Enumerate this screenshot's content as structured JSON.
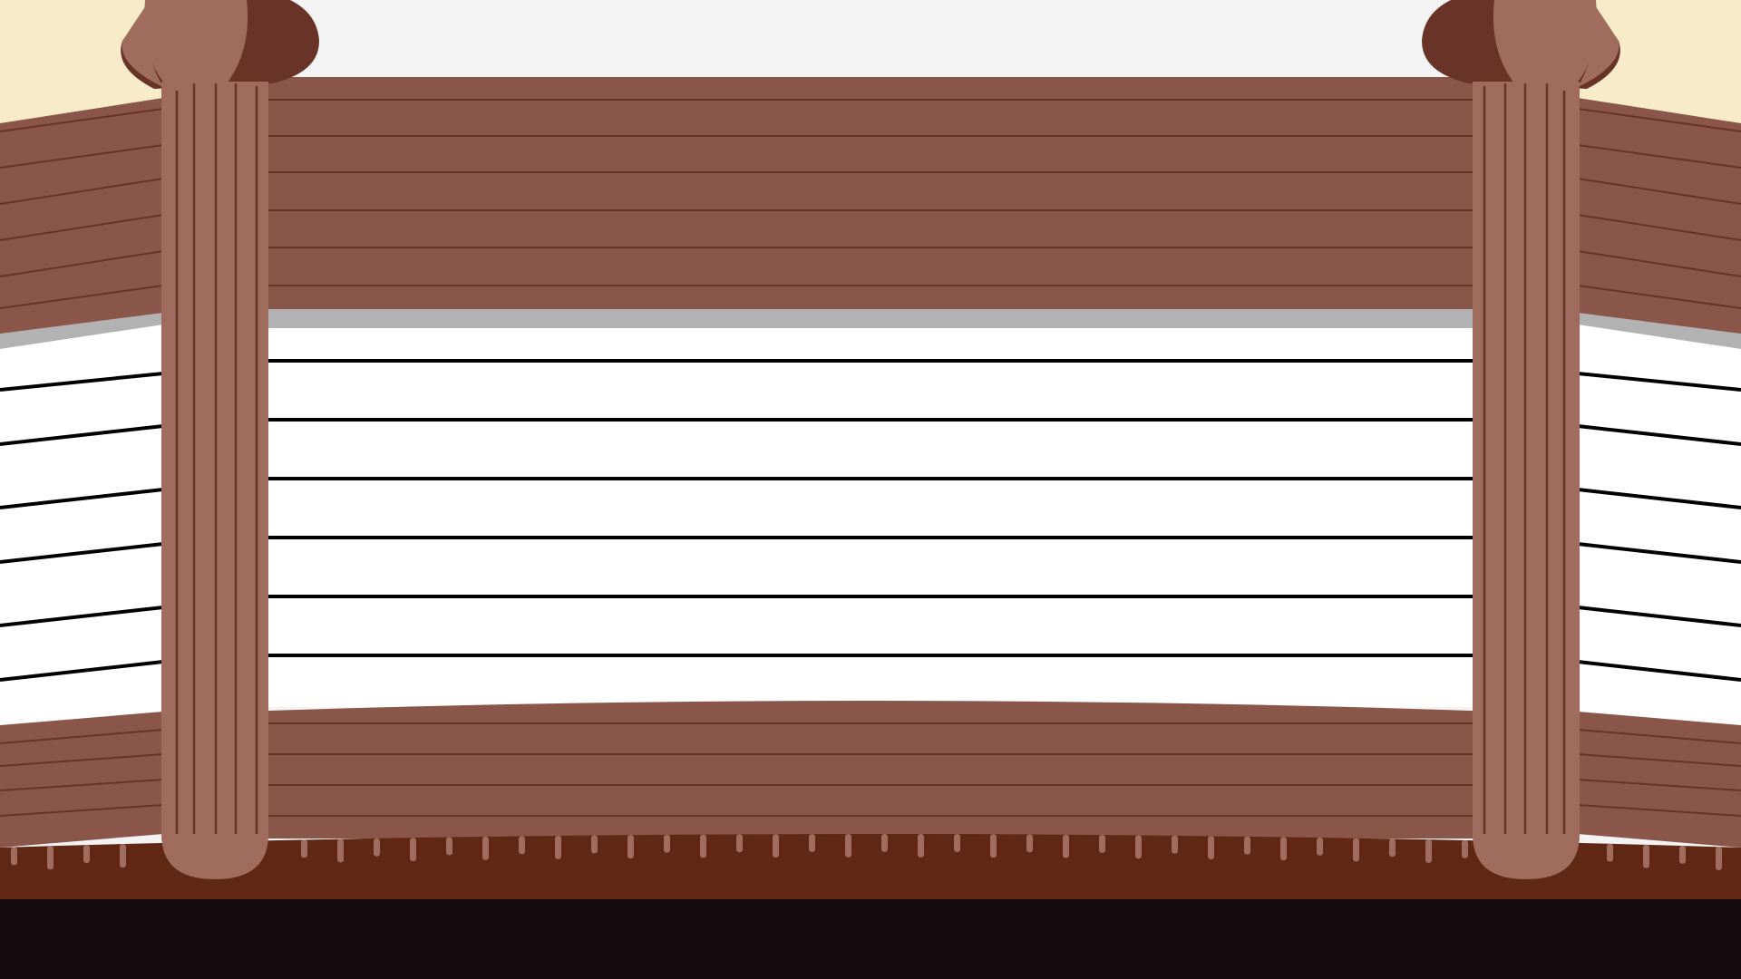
{
  "scene": {
    "type": "game-background",
    "subject": "wooden-railing-lattice",
    "elements": [
      "top-beam",
      "lattice-panel",
      "bottom-beam",
      "left-post",
      "right-post",
      "ground-strip",
      "floor"
    ],
    "colors": {
      "sky": "#f3f3f3",
      "sky_side": "#f7ebc9",
      "beam": "#8b564a",
      "beam_line": "#6a3328",
      "beam_shadow": "#b3b2b2",
      "lattice_fill": "#ffffff",
      "lattice_line": "#000000",
      "post": "#a06c5e",
      "post_cap_dark": "#6a3328",
      "post_groove": "#6a3328",
      "ground": "#622816",
      "fringe": "#a06c5e",
      "floor": "#140c0e"
    }
  }
}
